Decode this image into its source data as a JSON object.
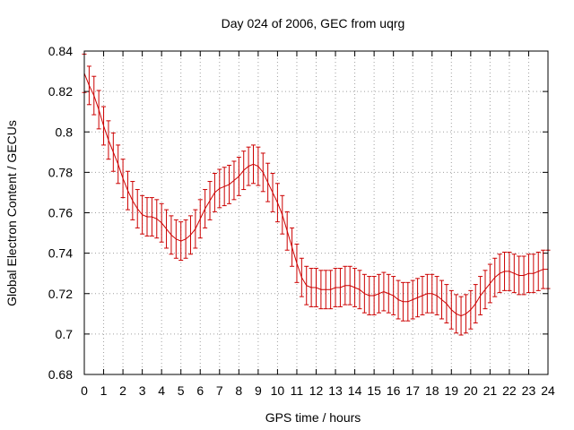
{
  "chart_data": {
    "type": "line",
    "title": "Day 024 of 2006, GEC from uqrg",
    "xlabel": "GPS time / hours",
    "ylabel": "Global Electron Content / GECUs",
    "xlim": [
      0,
      24
    ],
    "ylim": [
      0.68,
      0.84
    ],
    "grid": true,
    "x_ticks": [
      0,
      1,
      2,
      3,
      4,
      5,
      6,
      7,
      8,
      9,
      10,
      11,
      12,
      13,
      14,
      15,
      16,
      17,
      18,
      19,
      20,
      21,
      22,
      23,
      24
    ],
    "x_tick_labels": [
      "0",
      "1",
      "2",
      "3",
      "4",
      "5",
      "6",
      "7",
      "8",
      "9",
      "10",
      "11",
      "12",
      "13",
      "14",
      "15",
      "16",
      "17",
      "18",
      "19",
      "20",
      "21",
      "22",
      "23",
      "24"
    ],
    "y_ticks": [
      0.68,
      0.7,
      0.72,
      0.74,
      0.76,
      0.78,
      0.8,
      0.82,
      0.84
    ],
    "y_tick_labels": [
      "0.68",
      "0.7",
      "0.72",
      "0.74",
      "0.76",
      "0.78",
      "0.8",
      "0.82",
      "0.84"
    ],
    "series": [
      {
        "name": "GEC",
        "color": "#cc0000",
        "error": 0.0095,
        "x": [
          0,
          0.25,
          0.5,
          0.75,
          1,
          1.25,
          1.5,
          1.75,
          2,
          2.25,
          2.5,
          2.75,
          3,
          3.25,
          3.5,
          3.75,
          4,
          4.25,
          4.5,
          4.75,
          5,
          5.25,
          5.5,
          5.75,
          6,
          6.25,
          6.5,
          6.75,
          7,
          7.25,
          7.5,
          7.75,
          8,
          8.25,
          8.5,
          8.75,
          9,
          9.25,
          9.5,
          9.75,
          10,
          10.25,
          10.5,
          10.75,
          11,
          11.25,
          11.5,
          11.75,
          12,
          12.25,
          12.5,
          12.75,
          13,
          13.25,
          13.5,
          13.75,
          14,
          14.25,
          14.5,
          14.75,
          15,
          15.25,
          15.5,
          15.75,
          16,
          16.25,
          16.5,
          16.75,
          17,
          17.25,
          17.5,
          17.75,
          18,
          18.25,
          18.5,
          18.75,
          19,
          19.25,
          19.5,
          19.75,
          20,
          20.25,
          20.5,
          20.75,
          21,
          21.25,
          21.5,
          21.75,
          22,
          22.25,
          22.5,
          22.75,
          23,
          23.25,
          23.5,
          23.75,
          24
        ],
        "y": [
          0.829,
          0.823,
          0.818,
          0.811,
          0.803,
          0.796,
          0.79,
          0.784,
          0.777,
          0.771,
          0.766,
          0.762,
          0.759,
          0.758,
          0.758,
          0.757,
          0.755,
          0.752,
          0.749,
          0.747,
          0.746,
          0.747,
          0.749,
          0.752,
          0.757,
          0.762,
          0.766,
          0.77,
          0.772,
          0.773,
          0.774,
          0.776,
          0.778,
          0.781,
          0.783,
          0.784,
          0.783,
          0.78,
          0.775,
          0.77,
          0.765,
          0.759,
          0.751,
          0.743,
          0.735,
          0.728,
          0.724,
          0.723,
          0.723,
          0.722,
          0.722,
          0.722,
          0.723,
          0.723,
          0.724,
          0.724,
          0.723,
          0.722,
          0.72,
          0.719,
          0.719,
          0.72,
          0.721,
          0.72,
          0.719,
          0.717,
          0.716,
          0.716,
          0.717,
          0.718,
          0.719,
          0.72,
          0.72,
          0.719,
          0.717,
          0.715,
          0.712,
          0.71,
          0.709,
          0.71,
          0.712,
          0.715,
          0.719,
          0.722,
          0.725,
          0.728,
          0.73,
          0.731,
          0.731,
          0.73,
          0.729,
          0.729,
          0.73,
          0.73,
          0.731,
          0.732,
          0.732
        ]
      }
    ]
  }
}
